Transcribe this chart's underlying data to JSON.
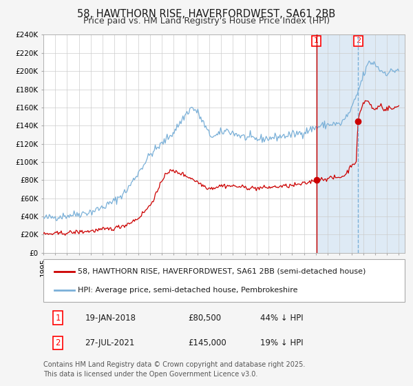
{
  "title": "58, HAWTHORN RISE, HAVERFORDWEST, SA61 2BB",
  "subtitle": "Price paid vs. HM Land Registry's House Price Index (HPI)",
  "ylim": [
    0,
    240000
  ],
  "yticks": [
    0,
    20000,
    40000,
    60000,
    80000,
    100000,
    120000,
    140000,
    160000,
    180000,
    200000,
    220000,
    240000
  ],
  "xlim_start": 1995.0,
  "xlim_end": 2025.5,
  "sale1_date": 2018.05,
  "sale1_price": 80500,
  "sale1_label": "1",
  "sale2_date": 2021.57,
  "sale2_price": 145000,
  "sale2_label": "2",
  "shade_start": 2018.05,
  "shade_end": 2025.5,
  "hpi_color": "#7ab0d8",
  "price_color": "#cc0000",
  "fig_bg": "#f5f5f5",
  "plot_bg": "#ffffff",
  "shade_color": "#deeaf5",
  "grid_color": "#cccccc",
  "vline1_color": "#cc0000",
  "vline1_style": "-",
  "vline2_color": "#7ab0d8",
  "vline2_style": "--",
  "legend1": "58, HAWTHORN RISE, HAVERFORDWEST, SA61 2BB (semi-detached house)",
  "legend2": "HPI: Average price, semi-detached house, Pembrokeshire",
  "table_row1": [
    "1",
    "19-JAN-2018",
    "£80,500",
    "44% ↓ HPI"
  ],
  "table_row2": [
    "2",
    "27-JUL-2021",
    "£145,000",
    "19% ↓ HPI"
  ],
  "footnote": "Contains HM Land Registry data © Crown copyright and database right 2025.\nThis data is licensed under the Open Government Licence v3.0.",
  "title_fontsize": 10.5,
  "subtitle_fontsize": 9,
  "tick_fontsize": 7.5,
  "legend_fontsize": 8,
  "table_fontsize": 8.5,
  "footnote_fontsize": 7
}
